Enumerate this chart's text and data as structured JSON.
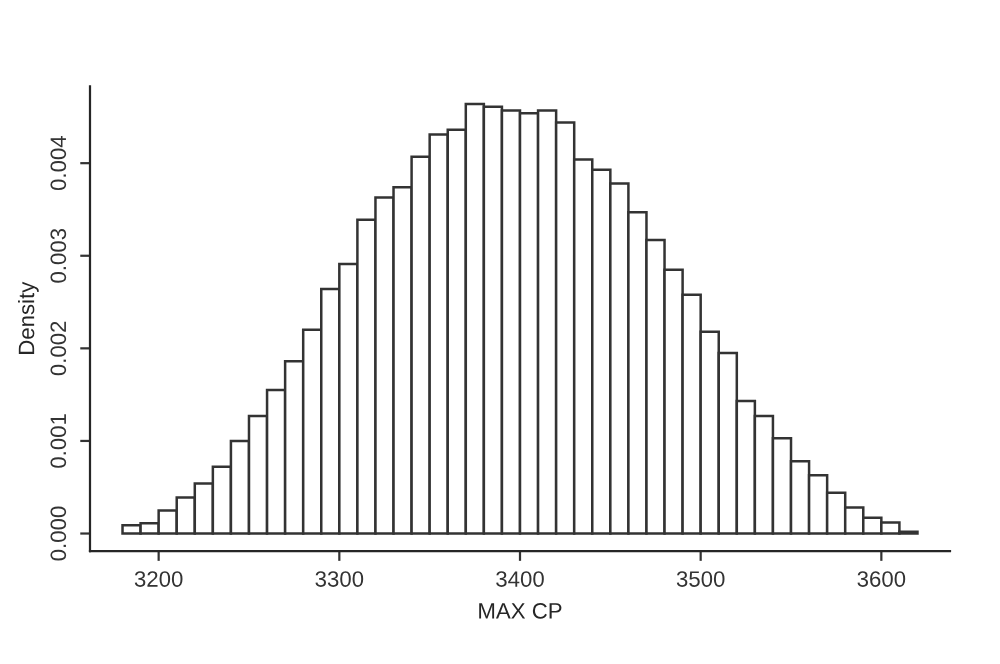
{
  "chart_data": {
    "type": "histogram",
    "xlabel": "MAX CP",
    "ylabel": "Density",
    "bins": [
      3180,
      3190,
      3200,
      3210,
      3220,
      3230,
      3240,
      3250,
      3260,
      3270,
      3280,
      3290,
      3300,
      3310,
      3320,
      3330,
      3340,
      3350,
      3360,
      3370,
      3380,
      3390,
      3400,
      3410,
      3420,
      3430,
      3440,
      3450,
      3460,
      3470,
      3480,
      3490,
      3500,
      3510,
      3520,
      3530,
      3540,
      3550,
      3560,
      3570,
      3580,
      3590,
      3600,
      3610,
      3620
    ],
    "values": [
      9e-05,
      0.00011,
      0.00025,
      0.00039,
      0.00054,
      0.00072,
      0.001,
      0.00127,
      0.00155,
      0.00186,
      0.0022,
      0.00264,
      0.00291,
      0.00339,
      0.00363,
      0.00374,
      0.00407,
      0.00431,
      0.00436,
      0.00464,
      0.00461,
      0.00457,
      0.00454,
      0.00457,
      0.00444,
      0.00404,
      0.00393,
      0.00378,
      0.00347,
      0.00317,
      0.00285,
      0.00258,
      0.00218,
      0.00195,
      0.00143,
      0.00127,
      0.00103,
      0.00078,
      0.00063,
      0.00044,
      0.00028,
      0.00017,
      0.00012,
      2e-05
    ],
    "color": "#ffffff",
    "xlim": [
      3162,
      3638
    ],
    "ylim": [
      -0.00019,
      0.00483
    ],
    "xticks": [
      3200,
      3300,
      3400,
      3500,
      3600
    ],
    "yticks": [
      {
        "value": 0,
        "label": "0.000"
      },
      {
        "value": 0.001,
        "label": "0.001"
      },
      {
        "value": 0.002,
        "label": "0.002"
      },
      {
        "value": 0.003,
        "label": "0.003"
      },
      {
        "value": 0.004,
        "label": "0.004"
      }
    ],
    "grid": false
  }
}
